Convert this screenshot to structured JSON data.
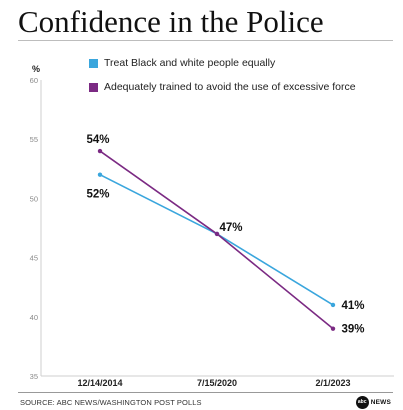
{
  "title": "Confidence in the Police",
  "source": "SOURCE: ABC NEWS/WASHINGTON POST POLLS",
  "logo": {
    "mark": "abc",
    "text": "NEWS"
  },
  "colors": {
    "series_1": "#3aa6dd",
    "series_2": "#7b2a83"
  },
  "chart_data": {
    "type": "line",
    "unit": "%",
    "categories": [
      "12/14/2014",
      "7/15/2020",
      "2/1/2023"
    ],
    "ylim": [
      35,
      60
    ],
    "yticks": [
      35,
      40,
      45,
      50,
      55,
      60
    ],
    "grid": false,
    "legend_position": "top",
    "series": [
      {
        "name": "Treat Black and white people equally",
        "values": [
          52,
          47,
          41
        ],
        "labels": [
          "52%",
          "",
          "41%"
        ],
        "color": "#3aa6dd"
      },
      {
        "name": "Adequately trained to avoid the use of excessive force",
        "values": [
          54,
          47,
          39
        ],
        "labels": [
          "54%",
          "47%",
          "39%"
        ],
        "color": "#7b2a83"
      }
    ]
  }
}
